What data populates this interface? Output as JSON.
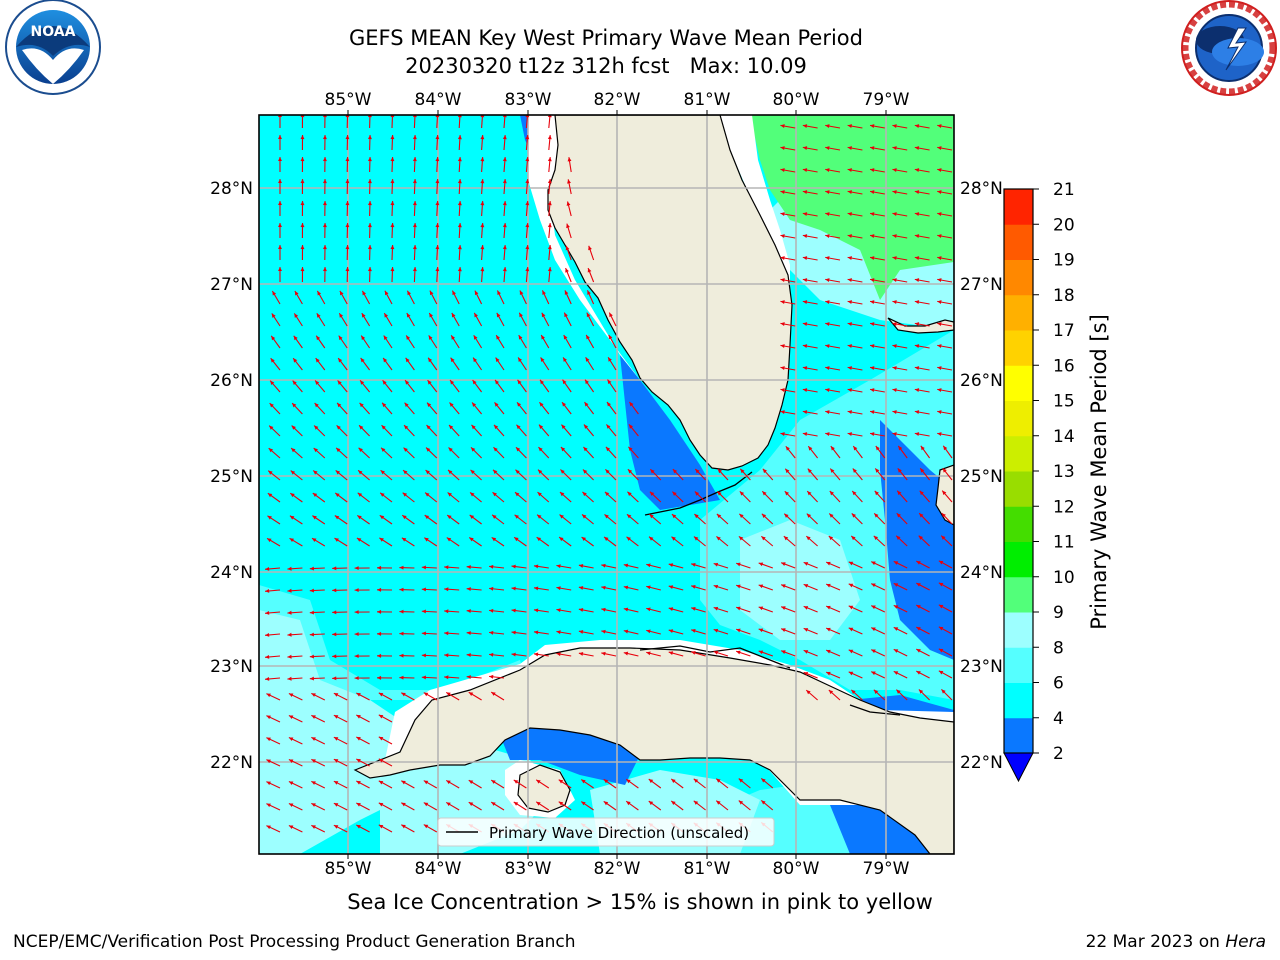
{
  "header": {
    "title_line1": "GEFS MEAN Key West Primary Wave Mean Period",
    "title_line2": "20230320 t12z 312h fcst   Max: 10.09"
  },
  "logos": {
    "left": {
      "name": "noaa-logo",
      "text": "NOAA",
      "ring_text": "NATIONAL OCEANIC AND ATMOSPHERIC ADMINISTRATION · U.S. DEPARTMENT OF COMMERCE"
    },
    "right": {
      "name": "nws-logo",
      "ring_text": "NATIONAL WEATHER SERVICE"
    }
  },
  "map": {
    "region": "Florida, Cuba, Gulf of Mexico, Straits of Florida",
    "lon_labels": [
      "85°W",
      "84°W",
      "83°W",
      "82°W",
      "81°W",
      "80°W",
      "79°W"
    ],
    "lat_labels": [
      "28°N",
      "27°N",
      "26°N",
      "25°N",
      "24°N",
      "23°N",
      "22°N"
    ],
    "lon_range": [
      -86.0,
      -78.25
    ],
    "lat_range": [
      21.1,
      28.75
    ],
    "colors": {
      "land": "#efeddc",
      "water_4_6": "#00ffff",
      "water_6_8": "#55ffff",
      "water_8_9": "#9dffff",
      "water_2_4": "#0a78ff",
      "water_9_10": "#52ff7a",
      "arrow": "#e8000b",
      "grid": "#b5b5b5"
    }
  },
  "legend": {
    "label": "Primary Wave Direction (unscaled)"
  },
  "colorbar": {
    "label": "Primary Wave Mean Period [s]",
    "ticks": [
      "2",
      "4",
      "6",
      "8",
      "9",
      "10",
      "11",
      "12",
      "13",
      "14",
      "15",
      "16",
      "17",
      "18",
      "19",
      "20",
      "21"
    ],
    "colors": [
      "#0a78ff",
      "#00ffff",
      "#55ffff",
      "#9dffff",
      "#52ff7a",
      "#00ee00",
      "#44dd00",
      "#99dd00",
      "#ccee00",
      "#eeee00",
      "#ffff00",
      "#ffd200",
      "#ffb000",
      "#ff8800",
      "#ff5a00",
      "#ff2400"
    ],
    "over_color": "#ff0000",
    "under_color": "#0000ff"
  },
  "footer": {
    "note": "Sea Ice Concentration > 15% is shown in pink to yellow",
    "credit": "NCEP/EMC/Verification Post Processing Product Generation Branch",
    "date": "22 Mar 2023 on",
    "machine": "Hera"
  }
}
